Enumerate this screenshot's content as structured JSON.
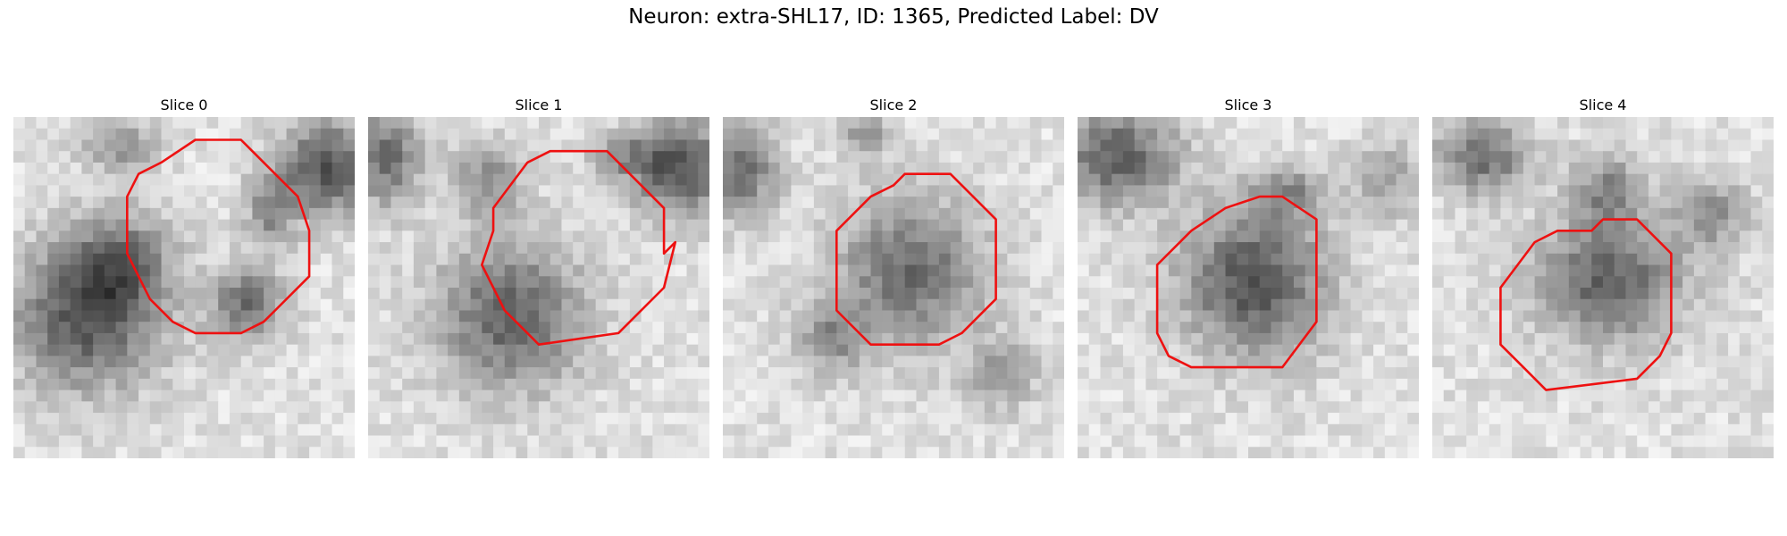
{
  "figure": {
    "title": "Neuron: extra-SHL17, ID: 1365, Predicted Label: DV",
    "contour_color": "#ee1111"
  },
  "panels": [
    {
      "title": "Slice 0"
    },
    {
      "title": "Slice 1"
    },
    {
      "title": "Slice 2"
    },
    {
      "title": "Slice 3"
    },
    {
      "title": "Slice 4"
    }
  ]
}
